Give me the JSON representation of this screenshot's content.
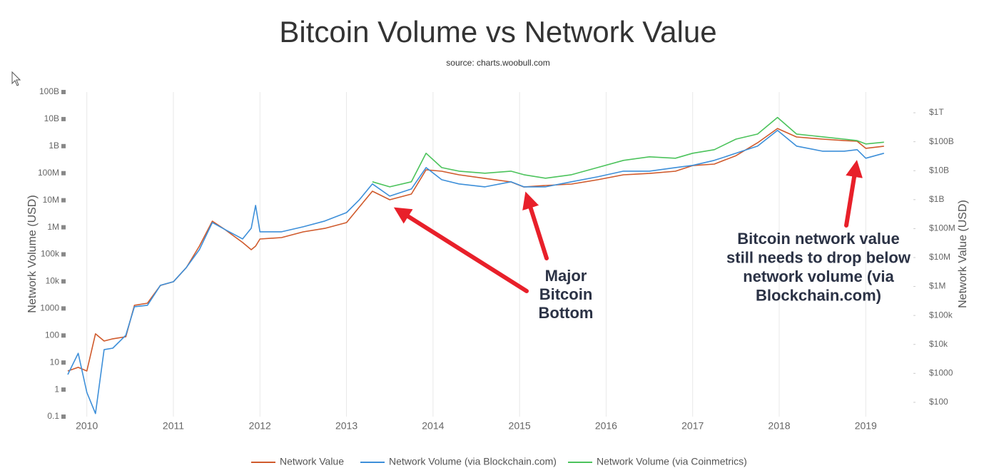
{
  "chart_data": {
    "type": "line",
    "title": "Bitcoin Volume vs Network Value",
    "subtitle": "source: charts.woobull.com",
    "ylabel": "Network Volume (USD)",
    "y2label": "Network Value (USD)",
    "ylog": true,
    "y2log": true,
    "xgrid": true,
    "legend": "bottom",
    "x": [
      2009.78,
      2009.9,
      2010.0,
      2010.1,
      2010.2,
      2010.3,
      2010.45,
      2010.55,
      2010.7,
      2010.85,
      2011.0,
      2011.15,
      2011.3,
      2011.45,
      2011.6,
      2011.8,
      2011.9,
      2011.95,
      2012.0,
      2012.25,
      2012.5,
      2012.75,
      2013.0,
      2013.15,
      2013.3,
      2013.5,
      2013.75,
      2013.92,
      2014.1,
      2014.3,
      2014.6,
      2014.9,
      2015.05,
      2015.3,
      2015.6,
      2015.9,
      2016.2,
      2016.5,
      2016.8,
      2017.0,
      2017.25,
      2017.5,
      2017.75,
      2017.98,
      2018.2,
      2018.5,
      2018.75,
      2018.9,
      2019.0,
      2019.21
    ],
    "xlim": [
      2009.78,
      2019.55
    ],
    "xticks": [
      2010,
      2011,
      2012,
      2013,
      2014,
      2015,
      2016,
      2017,
      2018,
      2019
    ],
    "ylim": [
      0.1,
      100000000000
    ],
    "yticks": [
      0.1,
      1,
      10,
      100,
      1000,
      {
        "value": 10000,
        "label": "10k"
      },
      {
        "value": 100000,
        "label": "100k"
      },
      {
        "value": 1000000,
        "label": "1M"
      },
      {
        "value": 10000000,
        "label": "10M"
      },
      {
        "value": 100000000,
        "label": "100M"
      },
      {
        "value": 1000000000,
        "label": "1B"
      },
      {
        "value": 10000000000,
        "label": "10B"
      },
      {
        "value": 100000000000,
        "label": "100B"
      }
    ],
    "y2lim": [
      32,
      5200000000000
    ],
    "y2ticks": [
      {
        "value": 100,
        "label": "$100"
      },
      {
        "value": 1000,
        "label": "$1000"
      },
      {
        "value": 10000,
        "label": "$10k"
      },
      {
        "value": 100000,
        "label": "$100k"
      },
      {
        "value": 1000000,
        "label": "$1M"
      },
      {
        "value": 10000000,
        "label": "$10M"
      },
      {
        "value": 100000000,
        "label": "$100M"
      },
      {
        "value": 1000000000,
        "label": "$1B"
      },
      {
        "value": 10000000000,
        "label": "$10B"
      },
      {
        "value": 100000000000,
        "label": "$100B"
      },
      {
        "value": 1000000000000,
        "label": "$1T"
      }
    ],
    "series": [
      {
        "name": "Network Value",
        "color": "#d05a2c",
        "axis": "y2",
        "values": [
          1210,
          1610,
          1210,
          23200,
          13100,
          15600,
          18400,
          224000,
          265000,
          1090000,
          1460000,
          4520000,
          24800000,
          180000000,
          91000000,
          33000000,
          18700000,
          24800000,
          43700000,
          49000000,
          77000000,
          102000000,
          161000000,
          561000000,
          1950000000,
          988000000,
          1560000000,
          10700000000,
          9600000000,
          7200000000,
          5400000000,
          4080000000,
          2740000000,
          3070000000,
          3440000000,
          4840000000,
          7200000000,
          8050000000,
          9600000000,
          15000000000,
          16900000000,
          33000000000,
          92000000000,
          287000000000,
          146000000000,
          123000000000,
          109000000000,
          104000000000,
          59000000000,
          70000000000
        ]
      },
      {
        "name": "Network Volume (via Blockchain.com)",
        "color": "#3d8fd9",
        "values": [
          3.6,
          22,
          0.79,
          0.13,
          30,
          34,
          102,
          1160,
          1310,
          7160,
          9700,
          32700,
          149000,
          1500000,
          819000,
          372000,
          925000,
          6460000,
          682000,
          682000,
          1040000,
          1700000,
          3500000,
          10500000,
          40000000,
          14200000,
          26000000,
          161000000,
          57500000,
          40000000,
          31300000,
          48000000,
          31300000,
          31300000,
          48000000,
          73000000,
          119000000,
          119000000,
          161000000,
          194000000,
          297000000,
          545000000,
          1000000000,
          3800000000,
          1000000000,
          650000000,
          650000000,
          740000000,
          356000000,
          545000000
        ]
      },
      {
        "name": "Network Volume (via Coinmetrics)",
        "color": "#4cc35c",
        "values": [
          null,
          null,
          null,
          null,
          null,
          null,
          null,
          null,
          null,
          null,
          null,
          null,
          null,
          null,
          null,
          null,
          null,
          null,
          null,
          null,
          null,
          null,
          null,
          null,
          48000000,
          31300000,
          48000000,
          545000000,
          161000000,
          119000000,
          100000000,
          119000000,
          88000000,
          65000000,
          88000000,
          161000000,
          297000000,
          402000000,
          356000000,
          545000000,
          740000000,
          1820000000,
          2800000000,
          11500000000,
          2800000000,
          2200000000,
          1820000000,
          1600000000,
          1200000000,
          1400000000
        ]
      }
    ],
    "annotations": [
      {
        "lines": [
          "Major",
          "Bitcoin",
          "Bottom"
        ]
      },
      {
        "lines": [
          "Bitcoin network value",
          "still needs to drop below",
          "network volume (via",
          "Blockchain.com)"
        ]
      }
    ]
  }
}
